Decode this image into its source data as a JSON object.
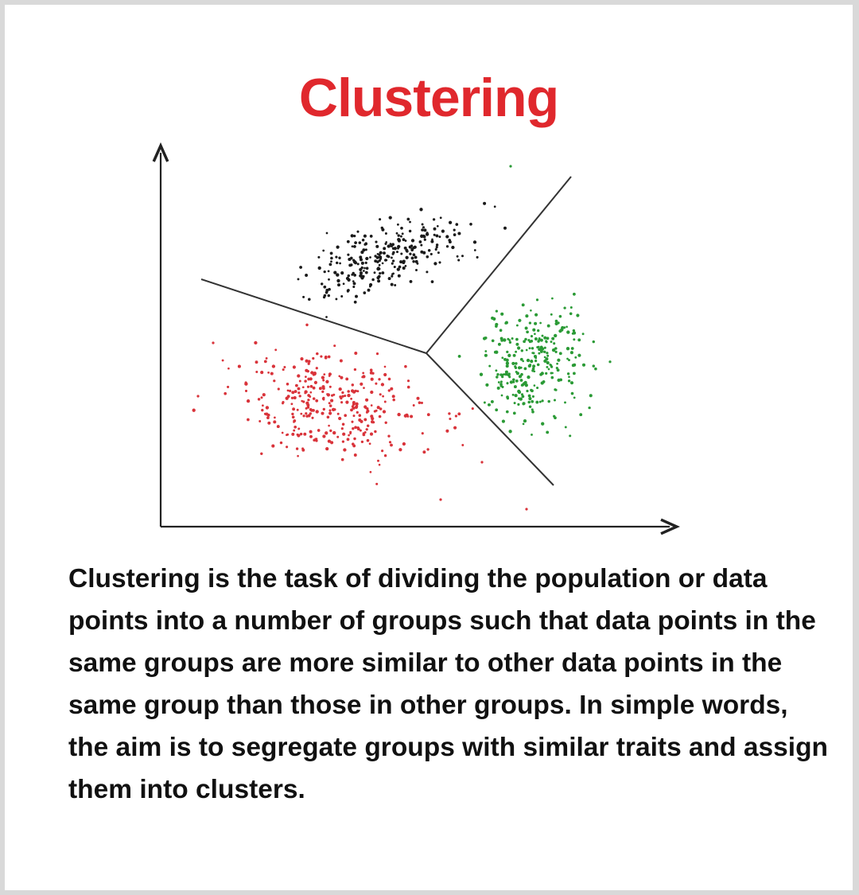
{
  "title": "Clustering",
  "description": "Clustering is the task of dividing the population or data points into a number of groups such that data points in the same groups are more similar to other data points in the same group than those in other groups. In simple words, the aim is to segregate groups with similar traits and assign them into clusters.",
  "colors": {
    "title": "#e0282d",
    "cluster_black": "#1a1a1a",
    "cluster_red": "#d9333a",
    "cluster_green": "#2a9a35",
    "axis": "#222222",
    "divider": "#333333"
  },
  "diagram": {
    "clusters": [
      {
        "color_key": "cluster_black",
        "region": "top",
        "point_count": 260
      },
      {
        "color_key": "cluster_red",
        "region": "bottom-left",
        "point_count": 330
      },
      {
        "color_key": "cluster_green",
        "region": "right",
        "point_count": 280
      }
    ]
  }
}
